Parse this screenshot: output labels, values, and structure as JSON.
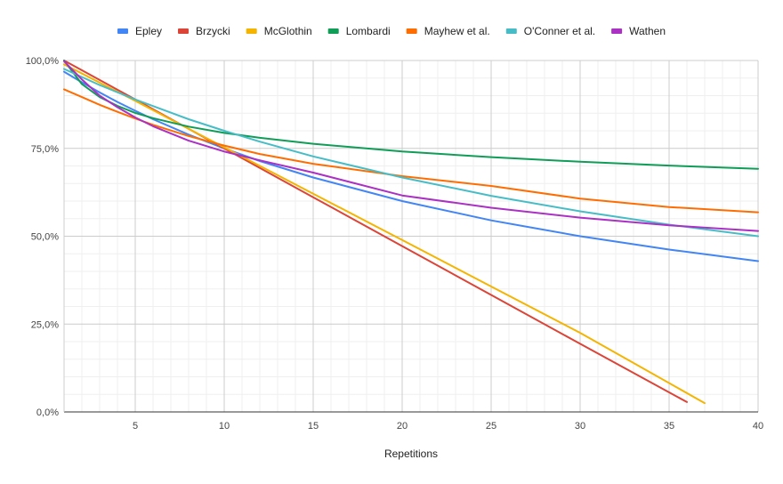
{
  "chart_data": {
    "type": "line",
    "title": "",
    "xlabel": "Repetitions",
    "ylabel": "",
    "xlim": [
      1,
      40
    ],
    "ylim": [
      0,
      100
    ],
    "grid": true,
    "legend_position": "top",
    "x_ticks": [
      5,
      10,
      15,
      20,
      25,
      30,
      35,
      40
    ],
    "x_tick_labels": [
      "5",
      "10",
      "15",
      "20",
      "25",
      "30",
      "35",
      "40"
    ],
    "y_ticks": [
      0,
      25,
      50,
      75,
      100
    ],
    "y_tick_labels": [
      "0,0%",
      "25,0%",
      "50,0%",
      "75,0%",
      "100,0%"
    ],
    "series": [
      {
        "name": "Epley",
        "color": "#4285f4",
        "x": [
          1,
          2,
          3,
          4,
          5,
          6,
          8,
          10,
          12,
          15,
          20,
          25,
          30,
          35,
          40
        ],
        "y": [
          96.8,
          93.8,
          90.9,
          88.2,
          85.7,
          83.3,
          78.9,
          75.0,
          71.4,
          66.7,
          60.0,
          54.5,
          50.0,
          46.2,
          42.9
        ]
      },
      {
        "name": "Brzycki",
        "color": "#db4437",
        "x": [
          1,
          5,
          10,
          15,
          20,
          25,
          30,
          36
        ],
        "y": [
          100.0,
          88.9,
          75.0,
          61.1,
          47.2,
          33.3,
          19.4,
          2.8
        ]
      },
      {
        "name": "McGlothin",
        "color": "#f4b400",
        "x": [
          1,
          5,
          10,
          15,
          20,
          25,
          30,
          37
        ],
        "y": [
          98.9,
          88.5,
          75.3,
          62.1,
          48.9,
          35.7,
          22.5,
          2.5
        ]
      },
      {
        "name": "Lombardi",
        "color": "#0f9d58",
        "x": [
          1,
          2,
          3,
          4,
          5,
          6,
          8,
          10,
          12,
          15,
          20,
          25,
          30,
          35,
          40
        ],
        "y": [
          100.0,
          93.3,
          89.6,
          87.1,
          85.1,
          83.6,
          81.2,
          79.4,
          78.0,
          76.3,
          74.1,
          72.5,
          71.2,
          70.1,
          69.2
        ]
      },
      {
        "name": "Mayhew et al.",
        "color": "#ff6d00",
        "x": [
          1,
          2,
          3,
          4,
          5,
          6,
          8,
          10,
          12,
          15,
          20,
          25,
          30,
          35,
          40
        ],
        "y": [
          91.8,
          89.6,
          87.4,
          85.4,
          83.5,
          81.7,
          78.5,
          75.8,
          73.4,
          70.6,
          67.1,
          64.3,
          60.7,
          58.3,
          56.8
        ]
      },
      {
        "name": "O'Conner et al.",
        "color": "#46bdc6",
        "x": [
          1,
          3,
          5,
          8,
          10,
          12,
          15,
          20,
          25,
          30,
          35,
          40
        ],
        "y": [
          97.6,
          93.0,
          88.9,
          83.3,
          80.0,
          76.9,
          72.7,
          66.7,
          61.5,
          57.1,
          53.3,
          50.0
        ]
      },
      {
        "name": "Wathen",
        "color": "#ab30c4",
        "x": [
          1,
          2,
          3,
          4,
          5,
          6,
          8,
          10,
          12,
          15,
          20,
          25,
          30,
          35,
          40
        ],
        "y": [
          99.8,
          94.6,
          90.0,
          86.7,
          83.8,
          81.3,
          77.2,
          74.1,
          71.6,
          68.1,
          61.6,
          58.1,
          55.3,
          53.1,
          51.5
        ]
      }
    ]
  }
}
